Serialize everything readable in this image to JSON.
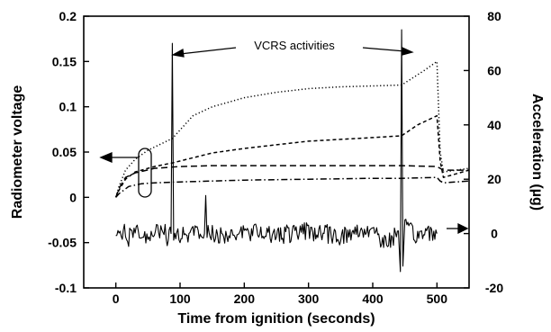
{
  "chart_data": {
    "type": "line",
    "xlabel": "Time from ignition (seconds)",
    "ylabel_left": "Radiometer voltage",
    "ylabel_right": "Acceleration (µg)",
    "xlim": [
      -50,
      550
    ],
    "ylim_left": [
      -0.1,
      0.2
    ],
    "ylim_right": [
      -20,
      80
    ],
    "x_ticks": [
      0,
      100,
      200,
      300,
      400,
      500
    ],
    "y_left_ticks": [
      -0.1,
      -0.05,
      0,
      0.05,
      0.1,
      0.15,
      0.2
    ],
    "y_right_ticks": [
      -20,
      0,
      20,
      40,
      60,
      80
    ],
    "x_tick_labels": [
      "0",
      "100",
      "200",
      "300",
      "400",
      "500"
    ],
    "y_left_tick_labels": [
      "-0.1",
      "-0.05",
      "0",
      "0.05",
      "0.1",
      "0.15",
      "0.2"
    ],
    "y_right_tick_labels": [
      "-20",
      "0",
      "20",
      "40",
      "60",
      "80"
    ],
    "annotation": "VCRS  activities",
    "series": [
      {
        "style": "dotted",
        "axis": "left",
        "x": [
          0,
          5,
          15,
          30,
          50,
          88,
          120,
          150,
          200,
          250,
          300,
          350,
          400,
          445,
          480,
          500,
          505,
          510,
          550
        ],
        "y": [
          0.0,
          0.012,
          0.03,
          0.042,
          0.052,
          0.065,
          0.09,
          0.1,
          0.11,
          0.116,
          0.12,
          0.122,
          0.123,
          0.124,
          0.14,
          0.15,
          0.05,
          0.028,
          0.032
        ]
      },
      {
        "style": "dashed",
        "axis": "left",
        "x": [
          0,
          5,
          15,
          30,
          60,
          88,
          150,
          200,
          250,
          300,
          350,
          400,
          445,
          470,
          500,
          505,
          510,
          550
        ],
        "y": [
          0.0,
          0.008,
          0.02,
          0.028,
          0.034,
          0.038,
          0.049,
          0.054,
          0.058,
          0.062,
          0.064,
          0.066,
          0.068,
          0.08,
          0.09,
          0.04,
          0.022,
          0.03
        ]
      },
      {
        "style": "long-dashed",
        "axis": "left",
        "x": [
          0,
          5,
          15,
          30,
          60,
          100,
          150,
          200,
          300,
          400,
          445,
          500,
          505,
          510,
          550
        ],
        "y": [
          0.0,
          0.01,
          0.022,
          0.027,
          0.032,
          0.034,
          0.035,
          0.035,
          0.035,
          0.035,
          0.035,
          0.034,
          0.032,
          0.03,
          0.03
        ]
      },
      {
        "style": "dash-dot",
        "axis": "left",
        "x": [
          0,
          5,
          20,
          40,
          60,
          100,
          200,
          300,
          400,
          445,
          500,
          505,
          510,
          550
        ],
        "y": [
          0.0,
          0.004,
          0.012,
          0.015,
          0.016,
          0.017,
          0.019,
          0.02,
          0.021,
          0.021,
          0.022,
          0.018,
          0.016,
          0.018
        ]
      },
      {
        "style": "solid",
        "axis": "right",
        "noise_amplitude": 3.5,
        "x": [
          0,
          10,
          20,
          30,
          40,
          50,
          60,
          70,
          80,
          86,
          88,
          90,
          100,
          120,
          138,
          140,
          142,
          160,
          200,
          250,
          300,
          350,
          400,
          420,
          440,
          443,
          445,
          447,
          450,
          470,
          490,
          500
        ],
        "y": [
          0,
          1,
          -2,
          2,
          -3,
          1,
          -1,
          2,
          -1,
          0,
          70,
          0,
          -1,
          1,
          0,
          14,
          0,
          -1,
          1,
          -1,
          1,
          -1,
          2,
          -4,
          1,
          -14,
          75,
          -12,
          2,
          -1,
          1,
          0
        ]
      }
    ]
  }
}
